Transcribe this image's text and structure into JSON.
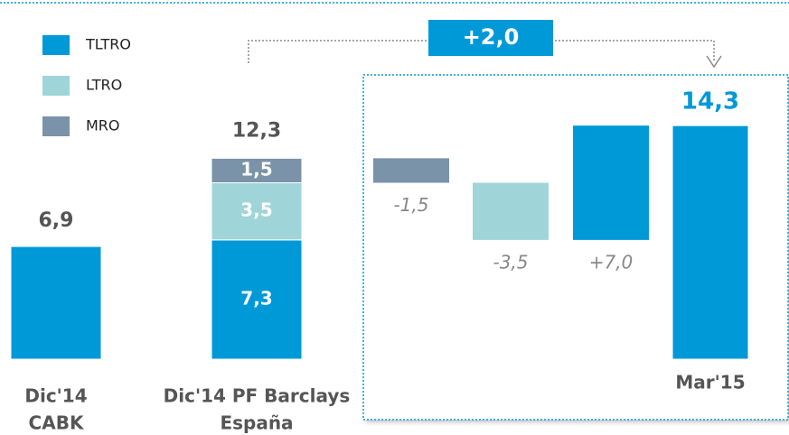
{
  "chart_data": {
    "type": "waterfall",
    "categories": [
      [
        "Dic'14",
        "CABK"
      ],
      [
        "Dic'14 PF Barclays",
        "España"
      ],
      null,
      null,
      null,
      [
        "Mar'15"
      ]
    ],
    "measure": [
      "absolute",
      "absolute",
      "relative",
      "relative",
      "relative",
      "total"
    ],
    "series": [
      {
        "name": "TLTRO",
        "color": "#0099d8",
        "values": [
          6.9,
          7.3,
          null,
          null,
          7.0,
          14.3
        ],
        "value_labels": [
          "6,9",
          "7,3",
          null,
          null,
          "+7,0",
          "14,3"
        ]
      },
      {
        "name": "LTRO",
        "color": "#9fd5d9",
        "values": [
          null,
          3.5,
          null,
          -3.5,
          null,
          null
        ],
        "value_labels": [
          null,
          "3,5",
          null,
          "-3,5",
          null,
          null
        ]
      },
      {
        "name": "MRO",
        "color": "#7a93a9",
        "values": [
          null,
          1.5,
          -1.5,
          null,
          null,
          null
        ],
        "value_labels": [
          null,
          "1,5",
          "-1,5",
          null,
          null,
          null
        ]
      }
    ],
    "totals": [
      null,
      12.3,
      null,
      null,
      null,
      null
    ],
    "total_labels": [
      null,
      "12,3",
      null,
      null,
      null,
      null
    ],
    "annotation": "+2,0"
  }
}
